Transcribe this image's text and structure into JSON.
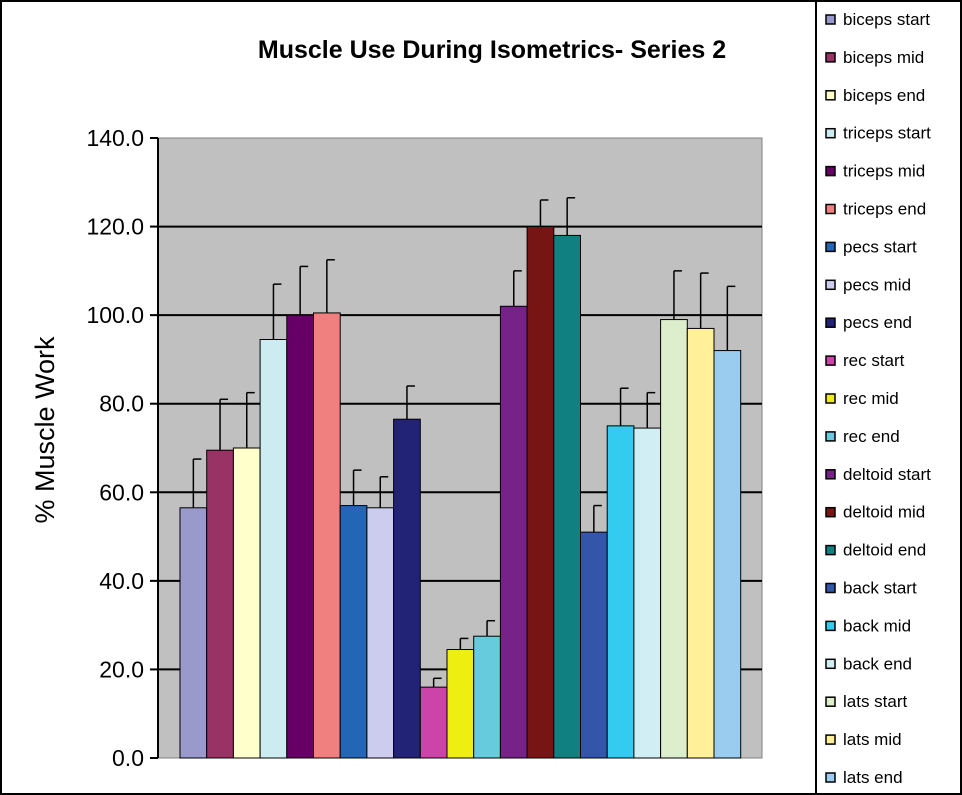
{
  "chart_data": {
    "type": "bar",
    "title": "Muscle Use During Isometrics- Series 2",
    "ylabel": "% Muscle Work",
    "xlabel": "",
    "ylim": [
      0,
      140
    ],
    "yticks": [
      "0.0",
      "20.0",
      "40.0",
      "60.0",
      "80.0",
      "100.0",
      "120.0",
      "140.0"
    ],
    "grid": true,
    "legend_position": "right",
    "plot_background": "#C0C0C0",
    "series": [
      {
        "name": "biceps start",
        "value": 56.5,
        "error": 11.0,
        "color": "#9999CC"
      },
      {
        "name": "biceps mid",
        "value": 69.5,
        "error": 11.5,
        "color": "#993366"
      },
      {
        "name": "biceps end",
        "value": 70.0,
        "error": 12.5,
        "color": "#FFFFCC"
      },
      {
        "name": "triceps start",
        "value": 94.5,
        "error": 12.5,
        "color": "#CCECF2"
      },
      {
        "name": "triceps mid",
        "value": 100.0,
        "error": 11.0,
        "color": "#660066"
      },
      {
        "name": "triceps end",
        "value": 100.5,
        "error": 12.0,
        "color": "#F08080"
      },
      {
        "name": "pecs start",
        "value": 57.0,
        "error": 8.0,
        "color": "#2266B5"
      },
      {
        "name": "pecs mid",
        "value": 56.5,
        "error": 7.0,
        "color": "#CCCCEE"
      },
      {
        "name": "pecs end",
        "value": 76.5,
        "error": 7.5,
        "color": "#222277"
      },
      {
        "name": "rec start",
        "value": 16.0,
        "error": 2.0,
        "color": "#CC44AA"
      },
      {
        "name": "rec mid",
        "value": 24.5,
        "error": 2.5,
        "color": "#EEEE11"
      },
      {
        "name": "rec end",
        "value": 27.5,
        "error": 3.5,
        "color": "#66CCDD"
      },
      {
        "name": "deltoid start",
        "value": 102.0,
        "error": 8.0,
        "color": "#772288"
      },
      {
        "name": "deltoid mid",
        "value": 120.0,
        "error": 6.0,
        "color": "#771515"
      },
      {
        "name": "deltoid end",
        "value": 118.0,
        "error": 8.5,
        "color": "#118080"
      },
      {
        "name": "back start",
        "value": 51.0,
        "error": 6.0,
        "color": "#3355AA"
      },
      {
        "name": "back mid",
        "value": 75.0,
        "error": 8.5,
        "color": "#33CCF0"
      },
      {
        "name": "back end",
        "value": 74.5,
        "error": 8.0,
        "color": "#D0EEF4"
      },
      {
        "name": "lats start",
        "value": 99.0,
        "error": 11.0,
        "color": "#DDEECC"
      },
      {
        "name": "lats mid",
        "value": 97.0,
        "error": 12.5,
        "color": "#FFF099"
      },
      {
        "name": "lats end",
        "value": 92.0,
        "error": 14.5,
        "color": "#99CCEE"
      }
    ]
  }
}
